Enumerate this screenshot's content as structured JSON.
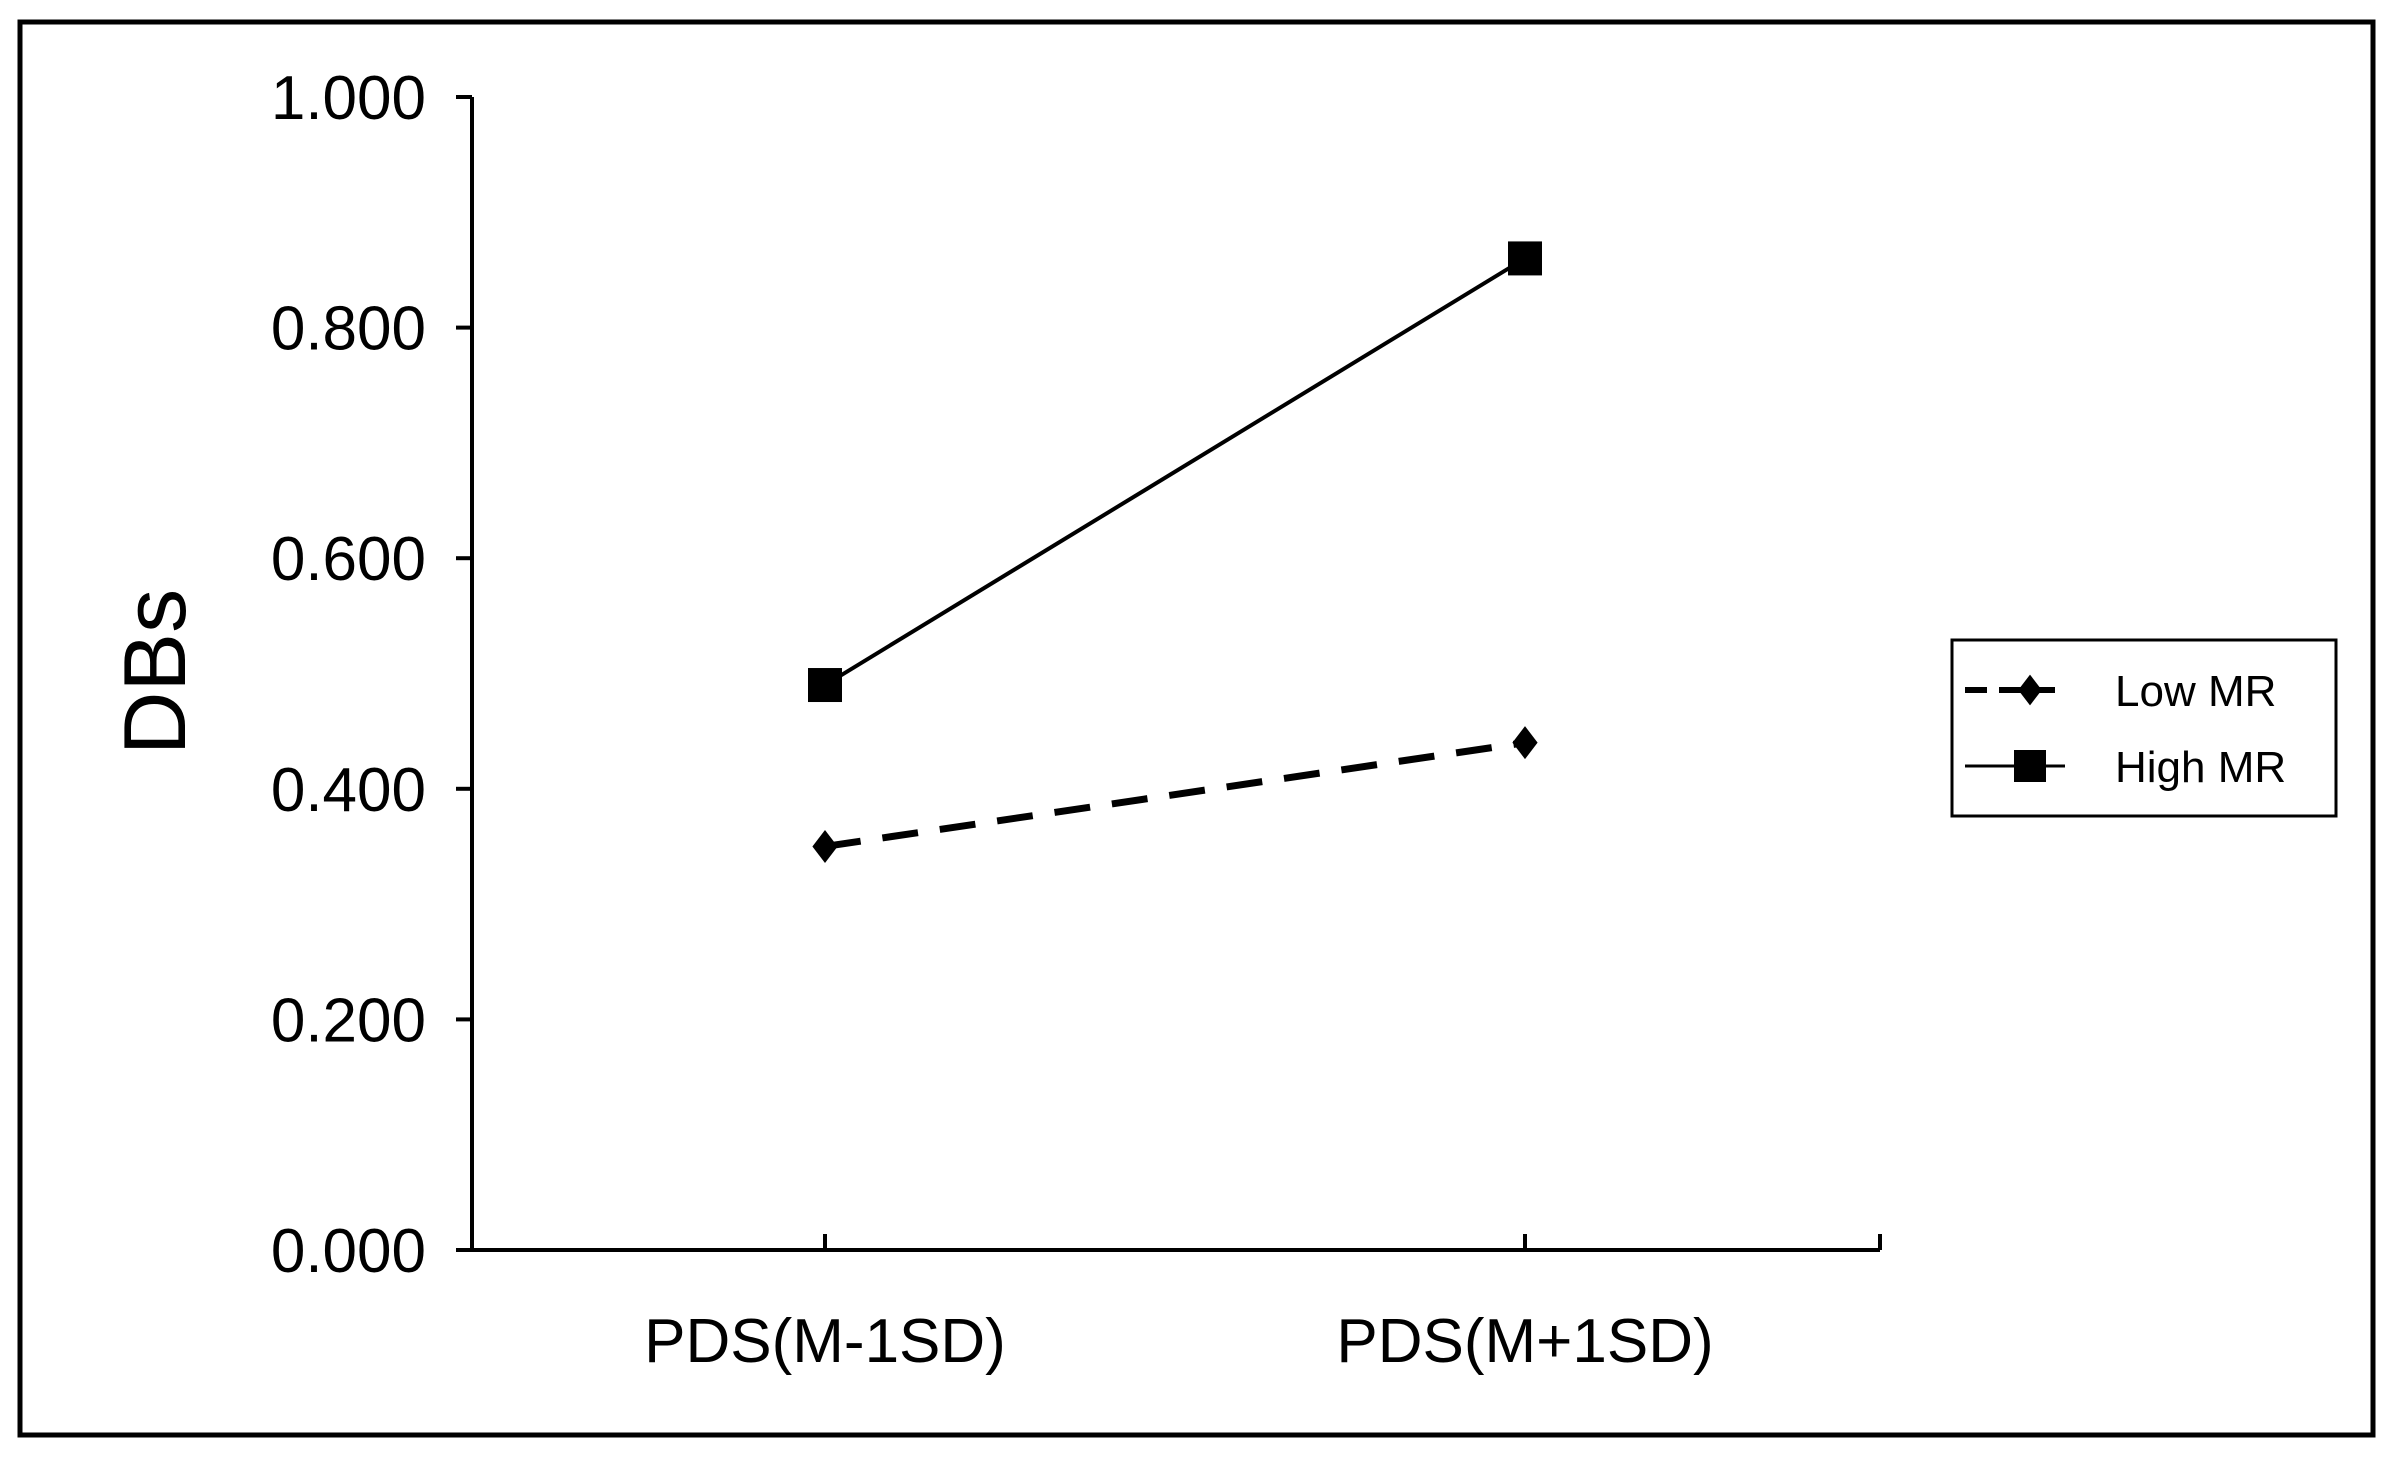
{
  "chart_data": {
    "type": "line",
    "title": "",
    "xlabel": "",
    "ylabel": "DBs",
    "categories": [
      "PDS(M-1SD)",
      "PDS(M+1SD)"
    ],
    "ylim": [
      0,
      1
    ],
    "yticks": [
      "0.000",
      "0.200",
      "0.400",
      "0.600",
      "0.800",
      "1.000"
    ],
    "grid": false,
    "legend_position": "right",
    "series": [
      {
        "name": "Low MR",
        "values": [
          0.35,
          0.44
        ],
        "line_style": "dashed",
        "marker": "diamond"
      },
      {
        "name": "High MR",
        "values": [
          0.49,
          0.86
        ],
        "line_style": "solid",
        "marker": "square"
      }
    ],
    "colors": {
      "line": "#000000",
      "background": "#ffffff"
    }
  }
}
